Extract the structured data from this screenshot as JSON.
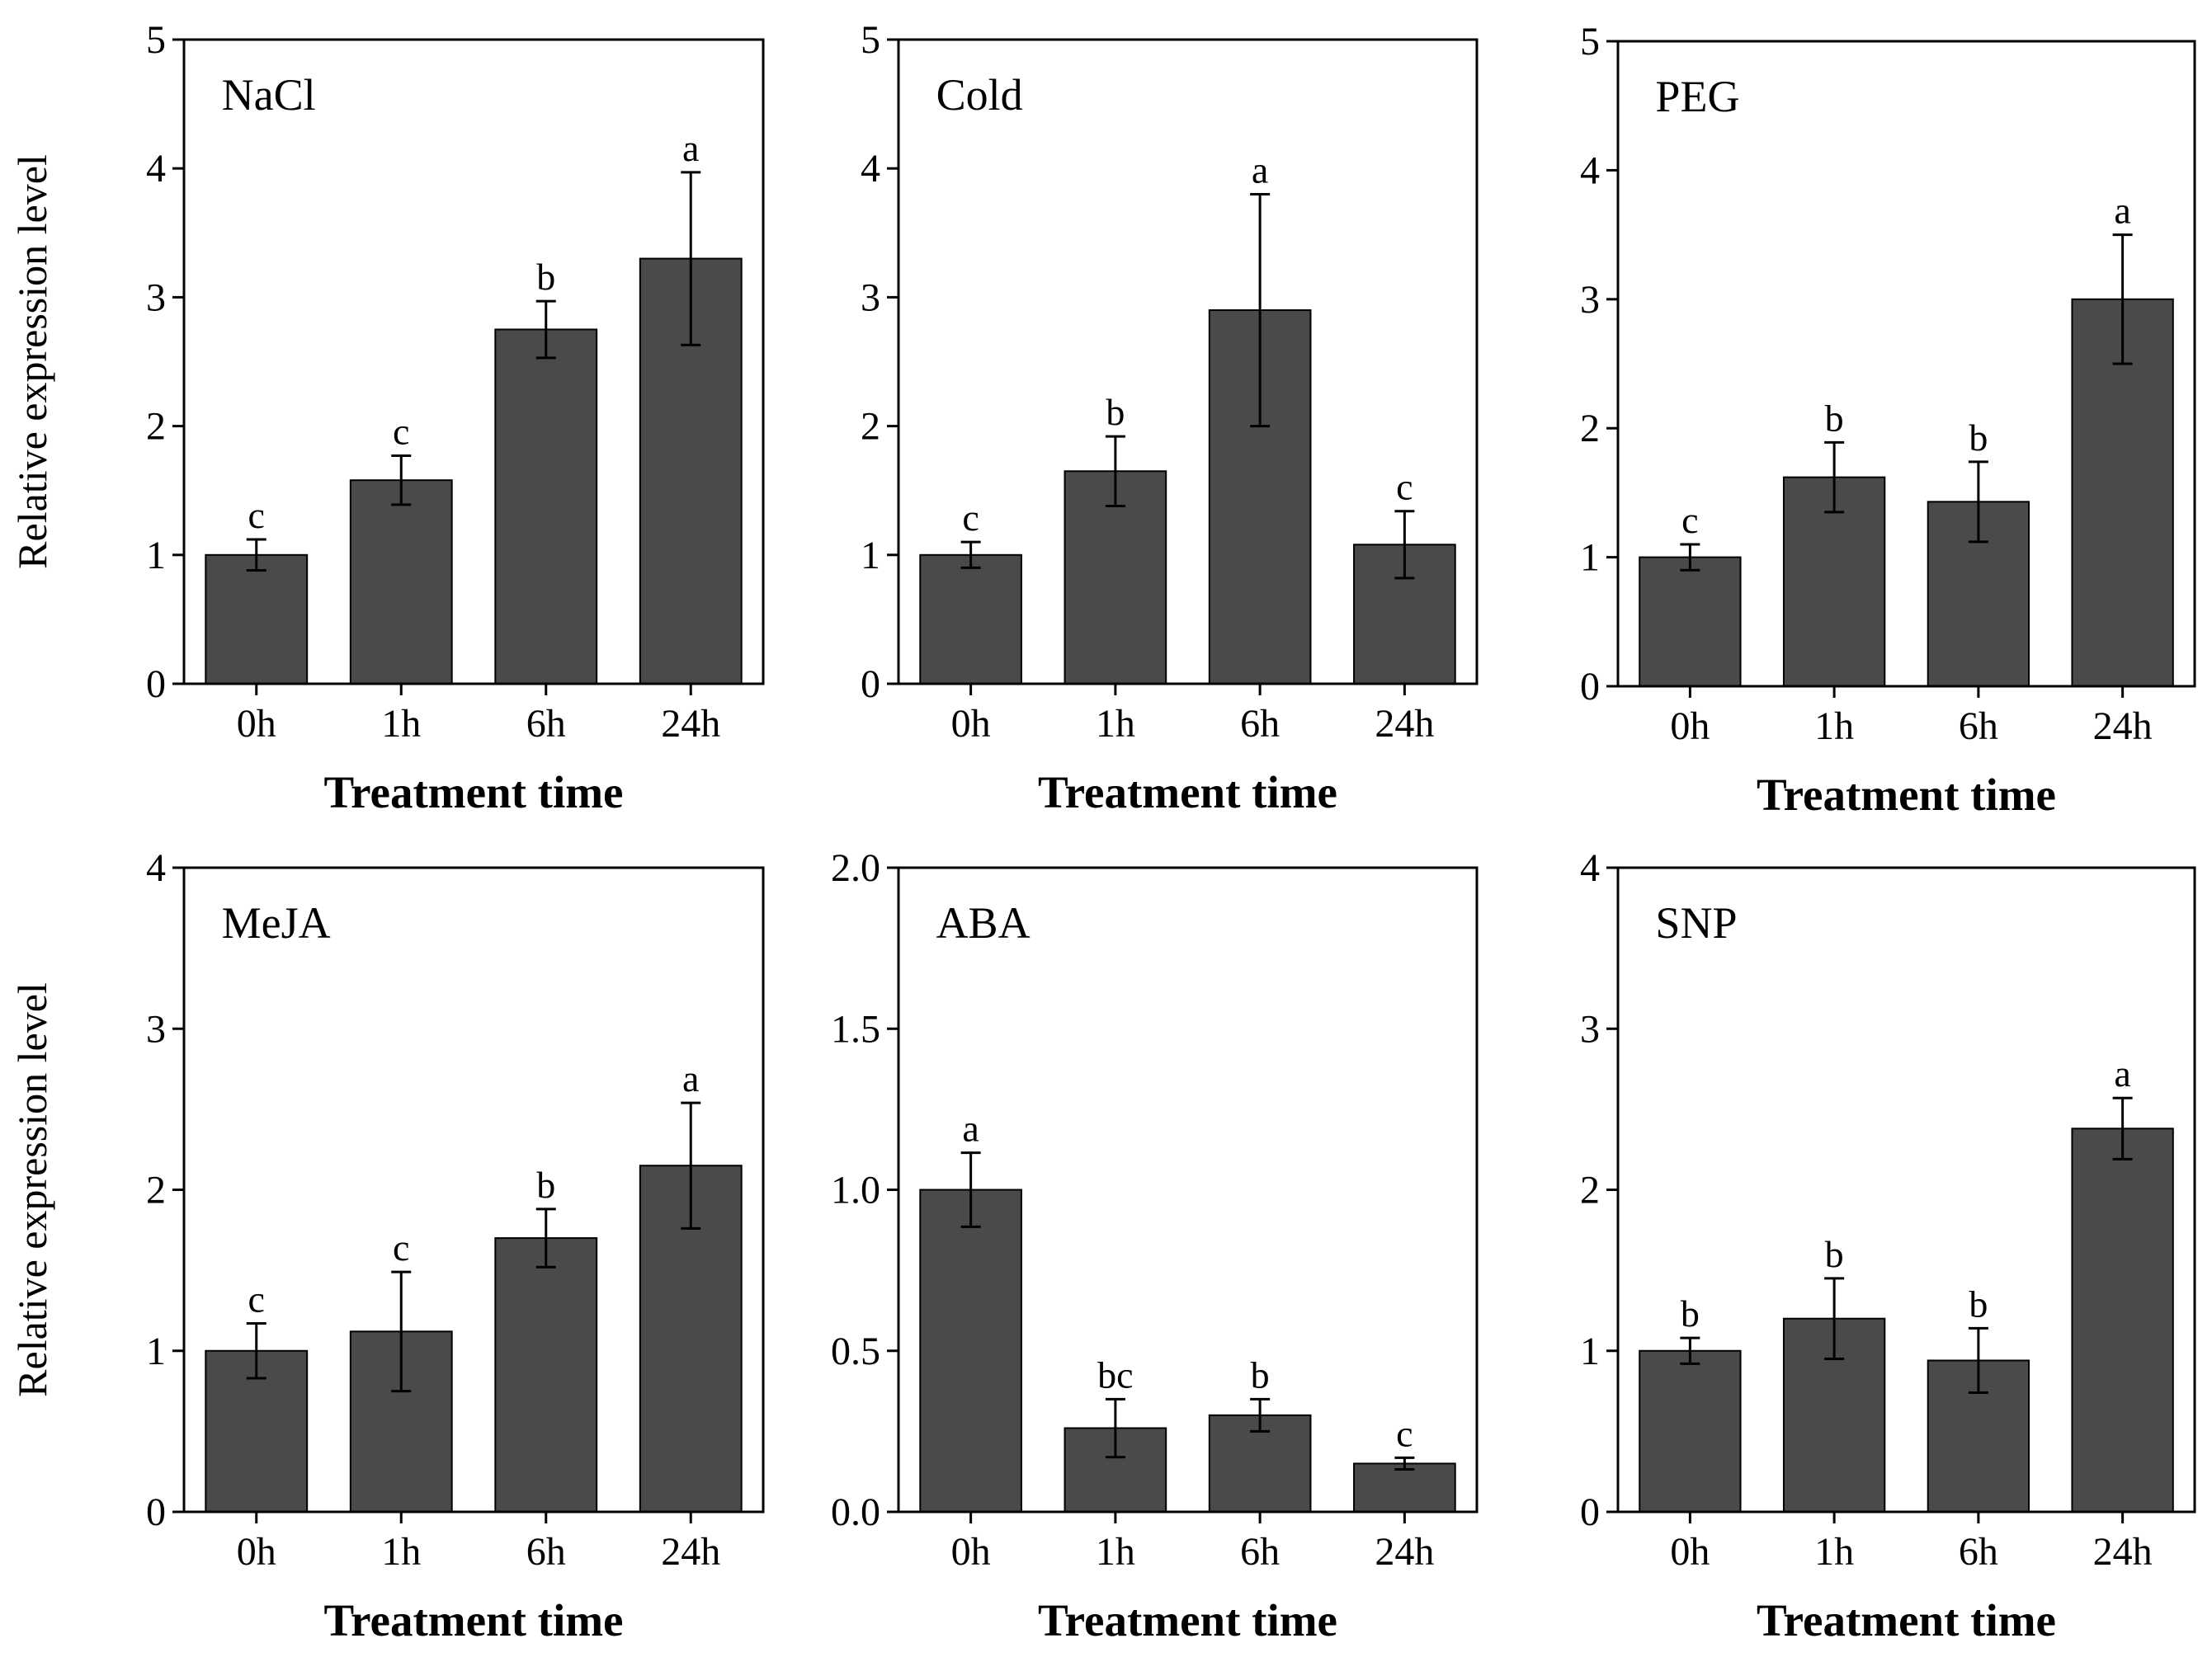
{
  "chart_data": [
    {
      "type": "bar",
      "title": "NaCl",
      "xlabel": "Treatment time",
      "ylabel": "Relative expression level",
      "ylim": [
        0,
        5
      ],
      "yticks": [
        "0",
        "1",
        "2",
        "3",
        "4",
        "5"
      ],
      "categories": [
        "0h",
        "1h",
        "6h",
        "24h"
      ],
      "values": [
        1.0,
        1.58,
        2.75,
        3.3
      ],
      "errors": [
        0.12,
        0.19,
        0.22,
        0.67
      ],
      "letters": [
        "c",
        "c",
        "b",
        "a"
      ]
    },
    {
      "type": "bar",
      "title": "Cold",
      "xlabel": "Treatment time",
      "ylabel": "",
      "ylim": [
        0,
        5
      ],
      "yticks": [
        "0",
        "1",
        "2",
        "3",
        "4",
        "5"
      ],
      "categories": [
        "0h",
        "1h",
        "6h",
        "24h"
      ],
      "values": [
        1.0,
        1.65,
        2.9,
        1.08
      ],
      "errors": [
        0.1,
        0.27,
        0.9,
        0.26
      ],
      "letters": [
        "c",
        "b",
        "a",
        "c"
      ]
    },
    {
      "type": "bar",
      "title": "PEG",
      "xlabel": "Treatment time",
      "ylabel": "",
      "ylim": [
        0,
        5
      ],
      "yticks": [
        "0",
        "1",
        "2",
        "3",
        "4",
        "5"
      ],
      "categories": [
        "0h",
        "1h",
        "6h",
        "24h"
      ],
      "values": [
        1.0,
        1.62,
        1.43,
        3.0
      ],
      "errors": [
        0.1,
        0.27,
        0.31,
        0.5
      ],
      "letters": [
        "c",
        "b",
        "b",
        "a"
      ]
    },
    {
      "type": "bar",
      "title": "MeJA",
      "xlabel": "Treatment time",
      "ylabel": "Relative expression level",
      "ylim": [
        0,
        4
      ],
      "yticks": [
        "0",
        "1",
        "2",
        "3",
        "4"
      ],
      "categories": [
        "0h",
        "1h",
        "6h",
        "24h"
      ],
      "values": [
        1.0,
        1.12,
        1.7,
        2.15
      ],
      "errors": [
        0.17,
        0.37,
        0.18,
        0.39
      ],
      "letters": [
        "c",
        "c",
        "b",
        "a"
      ]
    },
    {
      "type": "bar",
      "title": "ABA",
      "xlabel": "Treatment time",
      "ylabel": "",
      "ylim": [
        0,
        2
      ],
      "yticks": [
        "0.0",
        "0.5",
        "1.0",
        "1.5",
        "2.0"
      ],
      "categories": [
        "0h",
        "1h",
        "6h",
        "24h"
      ],
      "values": [
        1.0,
        0.26,
        0.3,
        0.15
      ],
      "errors": [
        0.115,
        0.09,
        0.05,
        0.018
      ],
      "letters": [
        "a",
        "bc",
        "b",
        "c"
      ]
    },
    {
      "type": "bar",
      "title": "SNP",
      "xlabel": "Treatment time",
      "ylabel": "",
      "ylim": [
        0,
        4
      ],
      "yticks": [
        "0",
        "1",
        "2",
        "3",
        "4"
      ],
      "categories": [
        "0h",
        "1h",
        "6h",
        "24h"
      ],
      "values": [
        1.0,
        1.2,
        0.94,
        2.38
      ],
      "errors": [
        0.08,
        0.25,
        0.2,
        0.19
      ],
      "letters": [
        "b",
        "b",
        "b",
        "a"
      ]
    }
  ],
  "colors": {
    "bar": "#4a4a4a",
    "axis": "#000000"
  }
}
